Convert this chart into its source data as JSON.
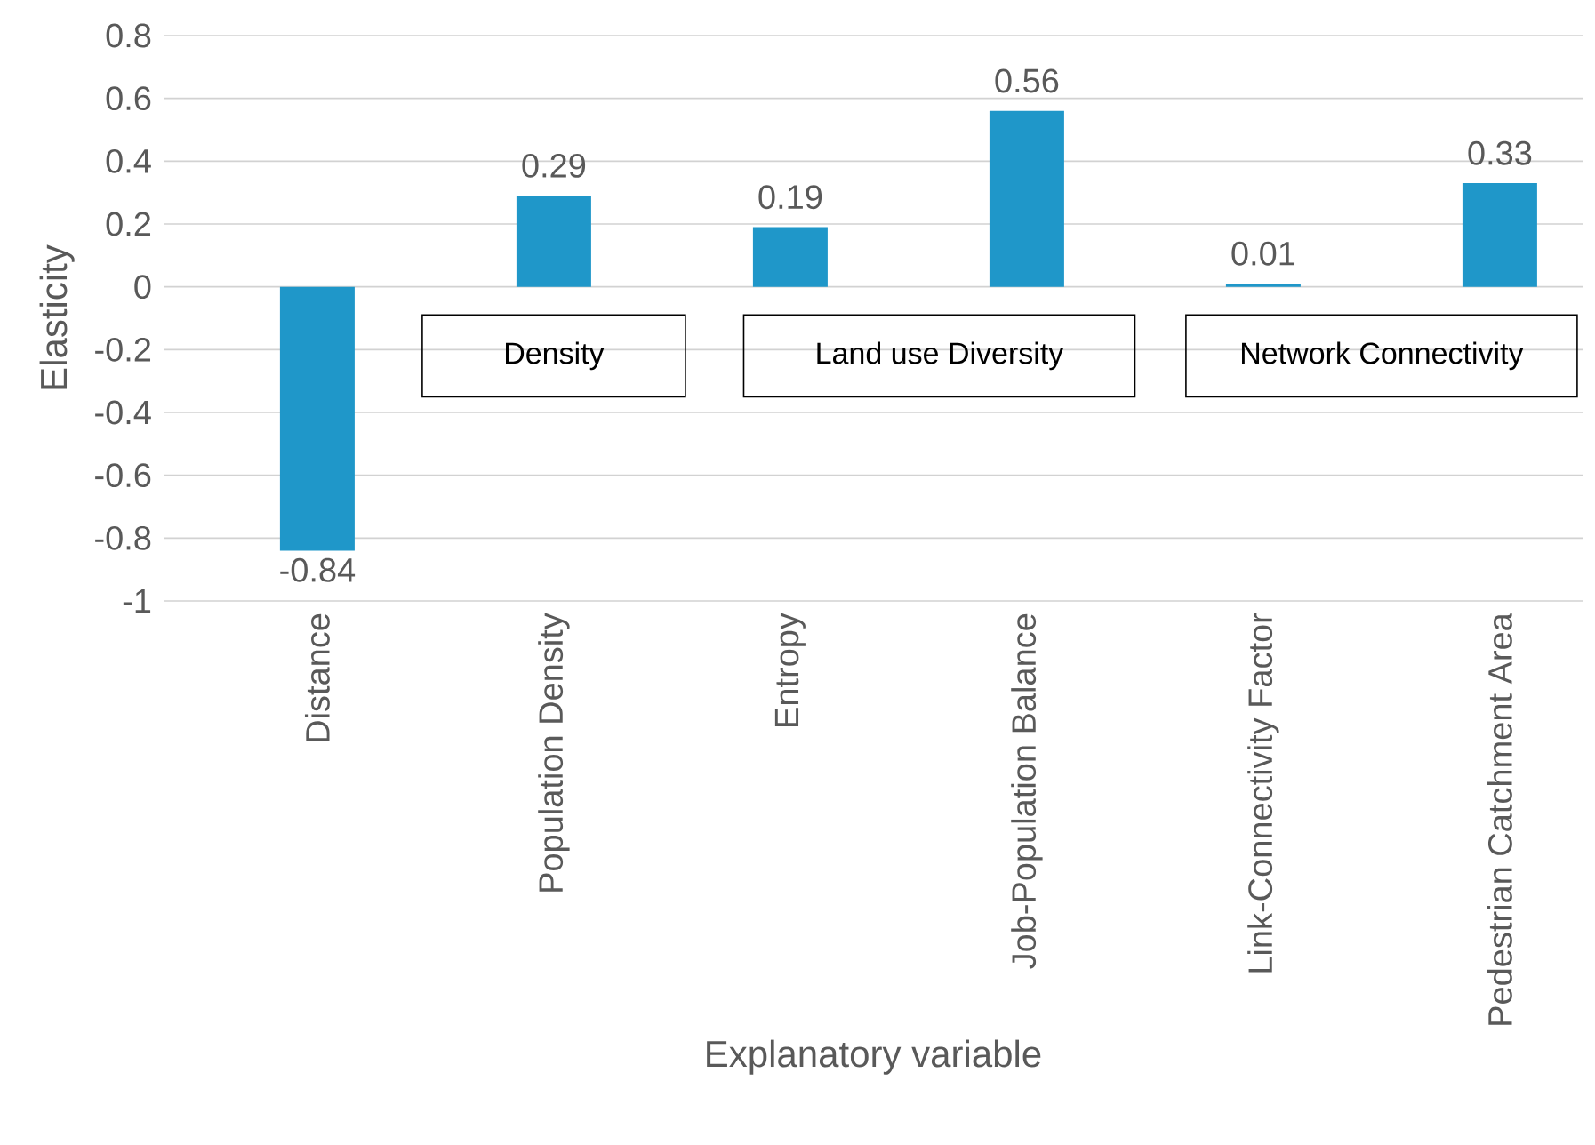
{
  "chart_data": {
    "type": "bar",
    "categories": [
      "Distance",
      "Population Density",
      "Entropy",
      "Job-Population Balance",
      "Link-Connectivity Factor",
      "Pedestrian Catchment Area"
    ],
    "values": [
      -0.84,
      0.29,
      0.19,
      0.56,
      0.01,
      0.33
    ],
    "color": "#1f97c9",
    "xlabel": "Explanatory variable",
    "ylabel": "Elasticity",
    "ylim": [
      -1,
      0.8
    ],
    "yticks": [
      -1,
      -0.8,
      -0.6,
      -0.4,
      -0.2,
      0,
      0.2,
      0.4,
      0.6,
      0.8
    ],
    "grid": "y",
    "data_labels": true,
    "annotations": [
      "Density",
      "Land use Diversity",
      "Network Connectivity"
    ]
  }
}
